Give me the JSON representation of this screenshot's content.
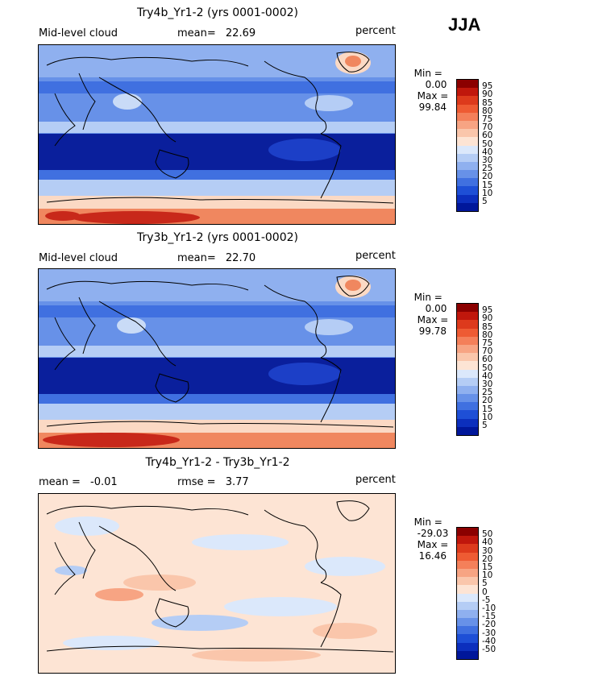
{
  "season": "JJA",
  "panels": [
    {
      "title": "Try4b_Yr1-2 (yrs 0001-0002)",
      "left_label": "Mid-level cloud",
      "center_label": "mean=",
      "center_value": "22.69",
      "right_label": "percent",
      "min_label": "Min =",
      "min_value": "0.00",
      "max_label": "Max =",
      "max_value": "99.84"
    },
    {
      "title": "Try3b_Yr1-2 (yrs 0001-0002)",
      "left_label": "Mid-level cloud",
      "center_label": "mean=",
      "center_value": "22.70",
      "right_label": "percent",
      "min_label": "Min =",
      "min_value": "0.00",
      "max_label": "Max =",
      "max_value": "99.78"
    },
    {
      "title": "Try4b_Yr1-2 - Try3b_Yr1-2",
      "left_label": "mean =",
      "left_value": "-0.01",
      "center_label": "rmse =",
      "center_value": "3.77",
      "right_label": "percent",
      "min_label": "Min =",
      "min_value": "-29.03",
      "max_label": "Max =",
      "max_value": "16.46"
    }
  ],
  "colorbars": {
    "cloud": {
      "ticks": [
        "95",
        "90",
        "85",
        "80",
        "75",
        "70",
        "60",
        "50",
        "40",
        "30",
        "25",
        "20",
        "15",
        "10",
        "5"
      ],
      "colors": [
        "#8b0000",
        "#c0170c",
        "#dd3a1c",
        "#ee5b33",
        "#f4805a",
        "#f7a483",
        "#fac6ab",
        "#fde4d4",
        "#dbe8fb",
        "#b5cdf5",
        "#8fb0ef",
        "#6791e8",
        "#4070e0",
        "#1e4fd6",
        "#0c2fbd",
        "#00179a"
      ]
    },
    "diff": {
      "ticks": [
        "50",
        "40",
        "30",
        "20",
        "15",
        "10",
        "5",
        "0",
        "-5",
        "-10",
        "-15",
        "-20",
        "-30",
        "-40",
        "-50"
      ],
      "colors": [
        "#8b0000",
        "#c0170c",
        "#dd3a1c",
        "#ee5b33",
        "#f4805a",
        "#f7a483",
        "#fac6ab",
        "#fde4d4",
        "#dbe8fb",
        "#b5cdf5",
        "#8fb0ef",
        "#6791e8",
        "#4070e0",
        "#1e4fd6",
        "#0c2fbd",
        "#00179a"
      ]
    }
  },
  "map_colors": {
    "deep": "#0a1f9c",
    "dark": "#1c3fc7",
    "mid": "#4a74e0",
    "light": "#8fb0ef",
    "pale": "#c9dbf7",
    "peach": "#fbd9c4",
    "orange": "#f0875f",
    "red": "#c8281a",
    "darkred": "#8b0000",
    "land": "#000000"
  }
}
